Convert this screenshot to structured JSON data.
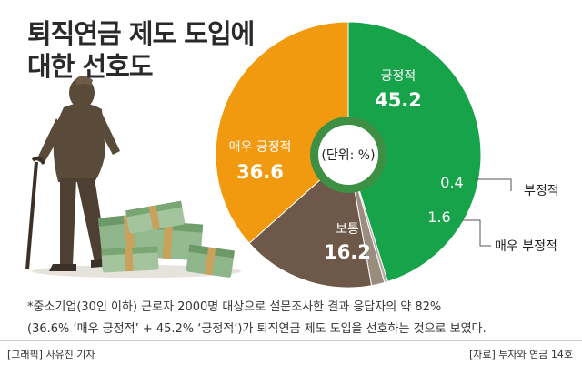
{
  "header": {
    "title_line1": "퇴직연금 제도 도입에",
    "title_line2": "대한 선호도"
  },
  "chart_data": {
    "type": "pie",
    "unit_note": "(단위: %)",
    "categories": [
      "긍정적",
      "부정적",
      "매우 부정적",
      "보통",
      "매우 긍정적"
    ],
    "values": [
      45.2,
      0.4,
      1.6,
      16.2,
      36.6
    ],
    "value_labels": [
      "45.2",
      "0.4",
      "1.6",
      "16.2",
      "36.6"
    ],
    "colors": [
      "#16a34a",
      "#b3aba1",
      "#9a8d80",
      "#6e5849",
      "#f29a0f"
    ]
  },
  "footnote": {
    "line1": "*중소기업(30인 이하) 근로자 2000명 대상으로 설문조사한 결과 응답자의 약 82%",
    "line2": "(36.6% ‘매우 긍정적’ + 45.2% ‘긍정적’)가 퇴직연금 제도 도입을 선호하는 것으로 보였다."
  },
  "credits": {
    "graphic": "[그래픽] 사유진 기자",
    "source": "[자료] 투자와 연금 14호"
  }
}
